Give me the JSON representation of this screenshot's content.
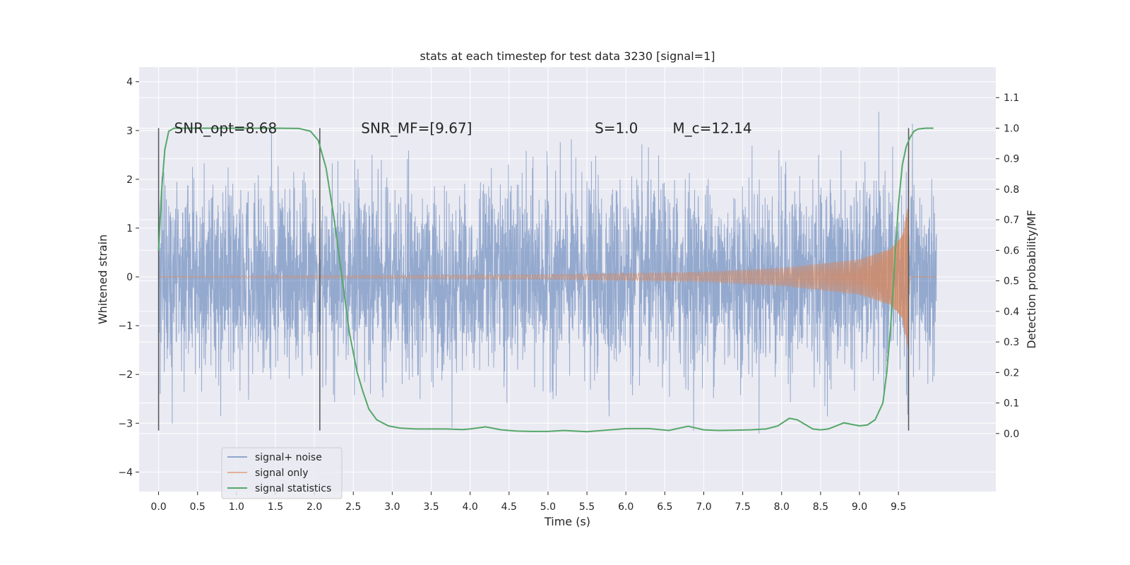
{
  "chart_data": {
    "type": "line",
    "title": "stats at each timestep for test data 3230 [signal=1]",
    "xlabel": "Time (s)",
    "ylabel": "Whitened strain",
    "y2label": "Detection probability/MF",
    "xlim": [
      -0.25,
      10.75
    ],
    "ylim": [
      -4.4,
      4.3
    ],
    "y2lim": [
      -0.19,
      1.2
    ],
    "x_ticks": [
      0.0,
      0.5,
      1.0,
      1.5,
      2.0,
      2.5,
      3.0,
      3.5,
      4.0,
      4.5,
      5.0,
      5.5,
      6.0,
      6.5,
      7.0,
      7.5,
      8.0,
      8.5,
      9.0,
      9.5
    ],
    "x_tick_labels": [
      "0.0",
      "0.5",
      "1.0",
      "1.5",
      "2.0",
      "2.5",
      "3.0",
      "3.5",
      "4.0",
      "4.5",
      "5.0",
      "5.5",
      "6.0",
      "6.5",
      "7.0",
      "7.5",
      "8.0",
      "8.5",
      "9.0",
      "9.5"
    ],
    "y_ticks": [
      -4,
      -3,
      -2,
      -1,
      0,
      1,
      2,
      3,
      4
    ],
    "y_tick_labels": [
      "−4",
      "−3",
      "−2",
      "−1",
      "0",
      "1",
      "2",
      "3",
      "4"
    ],
    "y2_ticks": [
      0.0,
      0.1,
      0.2,
      0.3,
      0.4,
      0.5,
      0.6,
      0.7,
      0.8,
      0.9,
      1.0,
      1.1
    ],
    "y2_tick_labels": [
      "0.0",
      "0.1",
      "0.2",
      "0.3",
      "0.4",
      "0.5",
      "0.6",
      "0.7",
      "0.8",
      "0.9",
      "1.0",
      "1.1"
    ],
    "grid": true,
    "legend_position": "lower-left",
    "colors": {
      "noise": "#4c72b0",
      "signal": "#dd8452",
      "stat": "#55a868",
      "vline": "#555555",
      "plot_bg": "#eaeaf2",
      "grid": "#ffffff"
    },
    "annotations": [
      {
        "text": "SNR_opt=8.68",
        "x": 0.2,
        "y": 3.05
      },
      {
        "text": "SNR_MF=[9.67]",
        "x": 2.6,
        "y": 3.05
      },
      {
        "text": "S=1.0",
        "x": 5.6,
        "y": 3.05
      },
      {
        "text": "M_c=12.14",
        "x": 6.6,
        "y": 3.05
      }
    ],
    "vlines": [
      {
        "x": 0.0,
        "ymin": -3.15,
        "ymax": 3.05
      },
      {
        "x": 2.07,
        "ymin": -3.15,
        "ymax": 3.05
      },
      {
        "x": 9.63,
        "ymin": -3.15,
        "ymax": 3.05
      }
    ],
    "noise_series": {
      "name": "signal+ noise",
      "x_start": 0.0,
      "x_end": 9.99,
      "std": 0.95,
      "clip": [
        -4.05,
        3.95
      ]
    },
    "signal_series": {
      "name": "signal only",
      "x_start": 0.0,
      "merger_x": 9.63,
      "x_end": 9.99,
      "peak_amplitude": 1.55,
      "envelope": [
        {
          "x": 0.0,
          "a": 0.01
        },
        {
          "x": 5.0,
          "a": 0.05
        },
        {
          "x": 7.0,
          "a": 0.1
        },
        {
          "x": 8.0,
          "a": 0.18
        },
        {
          "x": 9.0,
          "a": 0.36
        },
        {
          "x": 9.4,
          "a": 0.58
        },
        {
          "x": 9.55,
          "a": 0.85
        },
        {
          "x": 9.63,
          "a": 1.55
        }
      ]
    },
    "stat_series": {
      "name": "signal statistics",
      "x": [
        0.0,
        0.04,
        0.08,
        0.13,
        0.2,
        0.3,
        0.5,
        1.0,
        1.5,
        1.8,
        1.95,
        2.05,
        2.15,
        2.25,
        2.35,
        2.45,
        2.55,
        2.62,
        2.7,
        2.8,
        2.95,
        3.1,
        3.3,
        3.5,
        3.7,
        3.9,
        4.0,
        4.2,
        4.4,
        4.6,
        4.8,
        5.0,
        5.2,
        5.5,
        5.8,
        6.0,
        6.3,
        6.55,
        6.8,
        7.0,
        7.2,
        7.4,
        7.6,
        7.8,
        7.95,
        8.1,
        8.2,
        8.3,
        8.4,
        8.5,
        8.6,
        8.7,
        8.8,
        8.9,
        9.0,
        9.1,
        9.2,
        9.3,
        9.35,
        9.4,
        9.45,
        9.5,
        9.55,
        9.6,
        9.65,
        9.7,
        9.75,
        9.85,
        9.95
      ],
      "y": [
        0.6,
        0.8,
        0.93,
        0.99,
        1.0,
        1.0,
        1.0,
        1.0,
        1.0,
        0.999,
        0.99,
        0.96,
        0.87,
        0.71,
        0.52,
        0.33,
        0.2,
        0.14,
        0.08,
        0.045,
        0.025,
        0.018,
        0.015,
        0.015,
        0.015,
        0.013,
        0.015,
        0.022,
        0.012,
        0.008,
        0.007,
        0.007,
        0.01,
        0.006,
        0.012,
        0.016,
        0.016,
        0.01,
        0.024,
        0.012,
        0.01,
        0.011,
        0.012,
        0.015,
        0.025,
        0.05,
        0.045,
        0.03,
        0.015,
        0.012,
        0.015,
        0.025,
        0.035,
        0.03,
        0.025,
        0.028,
        0.045,
        0.1,
        0.2,
        0.35,
        0.55,
        0.75,
        0.88,
        0.94,
        0.97,
        0.99,
        0.997,
        1.0,
        1.0
      ]
    },
    "legend": [
      {
        "label": "signal+ noise",
        "key": "noise"
      },
      {
        "label": "signal only",
        "key": "signal"
      },
      {
        "label": "signal statistics",
        "key": "stat"
      }
    ]
  }
}
